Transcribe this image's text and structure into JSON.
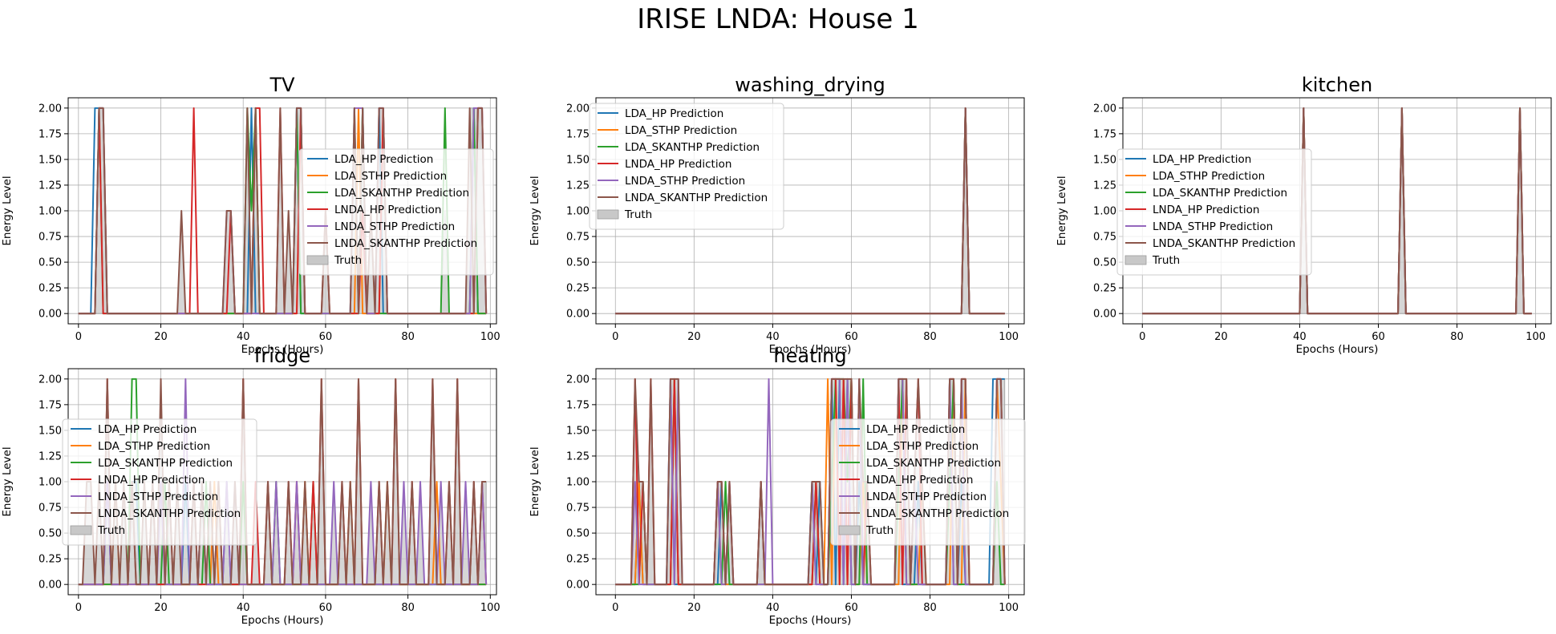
{
  "figure": {
    "suptitle": "IRISE LNDA: House 1"
  },
  "colors": {
    "LDA_HP": "#1f77b4",
    "LDA_STHP": "#ff7f0e",
    "LDA_SKANTHP": "#2ca02c",
    "LNDA_HP": "#d62728",
    "LNDA_STHP": "#9467bd",
    "LNDA_SKANTHP": "#8c564b",
    "truth": "#c8c8c8"
  },
  "legend_labels": {
    "LDA_HP": "LDA_HP Prediction",
    "LDA_STHP": "LDA_STHP Prediction",
    "LDA_SKANTHP": "LDA_SKANTHP Prediction",
    "LNDA_HP": "LNDA_HP Prediction",
    "LNDA_STHP": "LNDA_STHP Prediction",
    "LNDA_SKANTHP": "LNDA_SKANTHP Prediction",
    "truth": "Truth"
  },
  "chart_data": [
    {
      "type": "line",
      "title": "TV",
      "xlabel": "Epochs (Hours)",
      "ylabel": "Energy Level",
      "xlim": [
        -2.5,
        101.5
      ],
      "ylim": [
        -0.1,
        2.1
      ],
      "xticks": [
        0,
        20,
        40,
        60,
        80,
        100
      ],
      "yticks": [
        0,
        0.25,
        0.5,
        0.75,
        1,
        1.25,
        1.5,
        1.75,
        2
      ],
      "grid": true,
      "legend_position": "center-right",
      "x_count": 100,
      "truth": {
        "5": 2,
        "6": 2,
        "25": 1,
        "36": 1,
        "37": 1,
        "41": 2,
        "43": 2,
        "49": 2,
        "51": 1,
        "53": 2,
        "54": 2,
        "60": 1,
        "67": 2,
        "69": 2,
        "71": 1,
        "73": 2,
        "74": 2,
        "89": 1,
        "95": 2,
        "96": 2,
        "97": 2,
        "98": 2
      },
      "series": {
        "LDA_HP": {
          "4": 2,
          "5": 2,
          "6": 2,
          "42": 2,
          "53": 2,
          "67": 2,
          "69": 2,
          "73": 2,
          "96": 2
        },
        "LDA_STHP": {
          "5": 2,
          "6": 2,
          "43": 2,
          "54": 2,
          "68": 2,
          "74": 2
        },
        "LDA_SKANTHP": {
          "5": 2,
          "41": 2,
          "42": 1,
          "43": 2,
          "53": 2,
          "69": 2,
          "89": 2,
          "96": 2
        },
        "LNDA_HP": {
          "5": 2,
          "28": 2,
          "37": 1,
          "43": 2,
          "44": 2,
          "49": 2,
          "54": 2,
          "60": 1,
          "69": 1,
          "74": 2,
          "97": 2,
          "98": 2
        },
        "LNDA_STHP": {
          "5": 2,
          "6": 2,
          "36": 1,
          "37": 1,
          "53": 2,
          "54": 2,
          "67": 2,
          "68": 2,
          "69": 2,
          "73": 2,
          "74": 2,
          "96": 2,
          "97": 2,
          "98": 2
        },
        "LNDA_SKANTHP": {
          "5": 2,
          "6": 2,
          "25": 1,
          "36": 1,
          "37": 1,
          "41": 2,
          "43": 2,
          "49": 2,
          "51": 1,
          "53": 2,
          "54": 2,
          "60": 1,
          "67": 2,
          "69": 2,
          "71": 1,
          "73": 2,
          "74": 2,
          "95": 2,
          "97": 2,
          "98": 2
        }
      }
    },
    {
      "type": "line",
      "title": "washing_drying",
      "xlabel": "Epochs (Hours)",
      "ylabel": "Energy Level",
      "xlim": [
        -4.95,
        103.95
      ],
      "ylim": [
        -0.1,
        2.1
      ],
      "xticks": [
        0,
        20,
        40,
        60,
        80,
        100
      ],
      "yticks": [
        0,
        0.25,
        0.5,
        0.75,
        1,
        1.25,
        1.5,
        1.75,
        2
      ],
      "grid": true,
      "legend_position": "top-left",
      "x_count": 100,
      "truth": {
        "89": 2
      },
      "series": {
        "LDA_HP": {
          "89": 2
        },
        "LDA_STHP": {
          "89": 2
        },
        "LDA_SKANTHP": {
          "89": 2
        },
        "LNDA_HP": {
          "89": 2
        },
        "LNDA_STHP": {
          "89": 2
        },
        "LNDA_SKANTHP": {
          "89": 2
        }
      }
    },
    {
      "type": "line",
      "title": "kitchen",
      "xlabel": "Epochs (Hours)",
      "ylabel": "Energy Level",
      "xlim": [
        -4.95,
        103.95
      ],
      "ylim": [
        -0.1,
        2.1
      ],
      "xticks": [
        0,
        20,
        40,
        60,
        80,
        100
      ],
      "yticks": [
        0,
        0.25,
        0.5,
        0.75,
        1,
        1.25,
        1.5,
        1.75,
        2
      ],
      "grid": true,
      "legend_position": "center-left",
      "x_count": 100,
      "truth": {
        "41": 2,
        "66": 2,
        "96": 2
      },
      "series": {
        "LDA_HP": {
          "41": 2,
          "66": 2,
          "96": 2
        },
        "LDA_STHP": {
          "41": 2,
          "66": 2,
          "96": 2
        },
        "LDA_SKANTHP": {
          "41": 2,
          "66": 2,
          "96": 2
        },
        "LNDA_HP": {
          "41": 2,
          "66": 2,
          "96": 2
        },
        "LNDA_STHP": {
          "41": 2,
          "66": 2,
          "96": 2
        },
        "LNDA_SKANTHP": {
          "41": 2,
          "66": 2,
          "96": 2
        }
      }
    },
    {
      "type": "line",
      "title": "fridge",
      "xlabel": "Epochs (Hours)",
      "ylabel": "Energy Level",
      "xlim": [
        -2.5,
        101.5
      ],
      "ylim": [
        -0.1,
        2.1
      ],
      "xticks": [
        0,
        20,
        40,
        60,
        80,
        100
      ],
      "yticks": [
        0,
        0.25,
        0.5,
        0.75,
        1,
        1.25,
        1.5,
        1.75,
        2
      ],
      "grid": true,
      "legend_position": "center-left",
      "x_count": 100,
      "truth": {
        "2": 1,
        "3": 1,
        "5": 1,
        "7": 2,
        "9": 1,
        "11": 1,
        "13": 1,
        "14": 1,
        "16": 1,
        "18": 1,
        "20": 2,
        "22": 1,
        "24": 1,
        "26": 1,
        "28": 1,
        "30": 1,
        "32": 1,
        "34": 1,
        "36": 1,
        "38": 1,
        "40": 2,
        "43": 1,
        "46": 1,
        "48": 1,
        "51": 1,
        "53": 1,
        "55": 1,
        "57": 1,
        "59": 2,
        "62": 1,
        "64": 1,
        "66": 1,
        "68": 2,
        "71": 1,
        "73": 1,
        "75": 1,
        "77": 2,
        "79": 1,
        "81": 1,
        "83": 1,
        "86": 2,
        "88": 1,
        "90": 1,
        "92": 2,
        "94": 1,
        "96": 1,
        "98": 1,
        "99": 1
      },
      "series": {
        "LDA_HP": {
          "7": 1,
          "13": 1,
          "14": 1,
          "26": 1,
          "30": 1,
          "36": 1
        },
        "LDA_STHP": {
          "9": 1,
          "33": 1,
          "55": 1,
          "66": 1,
          "75": 1,
          "87": 1
        },
        "LDA_SKANTHP": {
          "13": 2,
          "14": 2,
          "21": 1,
          "31": 1,
          "40": 1,
          "48": 1,
          "57": 1
        },
        "LNDA_HP": {
          "7": 2,
          "13": 1,
          "18": 1,
          "22": 1,
          "28": 1,
          "34": 1,
          "40": 2,
          "43": 1,
          "46": 1,
          "51": 1,
          "53": 1,
          "57": 1,
          "59": 2,
          "64": 1,
          "68": 2,
          "73": 1,
          "77": 2,
          "81": 1,
          "86": 2,
          "90": 1,
          "92": 2,
          "96": 1,
          "98": 1
        },
        "LNDA_STHP": {
          "7": 1,
          "20": 1,
          "26": 2,
          "30": 1,
          "36": 1,
          "38": 1,
          "48": 1,
          "53": 1,
          "62": 1,
          "71": 1,
          "79": 1,
          "83": 1,
          "88": 1,
          "94": 1,
          "98": 1
        },
        "LNDA_SKANTHP": {
          "2": 1,
          "3": 1,
          "5": 1,
          "7": 2,
          "9": 1,
          "11": 1,
          "13": 1,
          "16": 1,
          "18": 1,
          "20": 2,
          "22": 1,
          "24": 1,
          "28": 1,
          "30": 1,
          "32": 1,
          "34": 1,
          "38": 1,
          "40": 2,
          "46": 1,
          "51": 1,
          "55": 1,
          "59": 2,
          "64": 1,
          "66": 1,
          "68": 2,
          "73": 1,
          "75": 1,
          "77": 2,
          "81": 1,
          "86": 2,
          "90": 1,
          "92": 2,
          "96": 1,
          "98": 1,
          "99": 1
        }
      }
    },
    {
      "type": "line",
      "title": "heating",
      "xlabel": "Epochs (Hours)",
      "ylabel": "Energy Level",
      "xlim": [
        -4.95,
        103.95
      ],
      "ylim": [
        -0.1,
        2.1
      ],
      "xticks": [
        0,
        20,
        40,
        60,
        80,
        100
      ],
      "yticks": [
        0,
        0.25,
        0.5,
        0.75,
        1,
        1.25,
        1.5,
        1.75,
        2
      ],
      "grid": true,
      "legend_position": "center-right",
      "x_count": 100,
      "truth": {
        "5": 2,
        "6": 1,
        "7": 1,
        "9": 2,
        "14": 2,
        "15": 2,
        "16": 2,
        "26": 1,
        "27": 1,
        "29": 1,
        "37": 1,
        "50": 1,
        "51": 1,
        "52": 1,
        "55": 2,
        "56": 2,
        "57": 2,
        "58": 2,
        "59": 2,
        "60": 2,
        "62": 2,
        "63": 1,
        "64": 1,
        "72": 2,
        "73": 2,
        "74": 2,
        "76": 1,
        "77": 2,
        "78": 1,
        "85": 2,
        "86": 2,
        "88": 2,
        "89": 2,
        "97": 2,
        "98": 2,
        "99": 2
      },
      "series": {
        "LDA_HP": {
          "6": 1,
          "14": 2,
          "27": 1,
          "37": 1,
          "50": 1,
          "52": 1,
          "55": 2,
          "57": 2,
          "59": 2,
          "62": 1,
          "72": 2,
          "77": 1,
          "85": 2,
          "88": 1,
          "96": 2,
          "97": 2,
          "98": 2,
          "99": 2
        },
        "LDA_STHP": {
          "6": 1,
          "15": 2,
          "26": 1,
          "51": 1,
          "54": 2,
          "56": 2,
          "58": 2,
          "60": 2,
          "63": 1,
          "73": 2,
          "78": 1,
          "86": 2,
          "89": 2,
          "97": 2,
          "98": 1
        },
        "LDA_SKANTHP": {
          "7": 1,
          "15": 2,
          "28": 1,
          "51": 1,
          "55": 1,
          "56": 2,
          "57": 2,
          "58": 2,
          "59": 1,
          "60": 2,
          "63": 2,
          "72": 1,
          "73": 2,
          "85": 1,
          "86": 2,
          "97": 1
        },
        "LNDA_HP": {
          "5": 2,
          "7": 1,
          "9": 2,
          "15": 2,
          "26": 1,
          "27": 1,
          "29": 1,
          "37": 1,
          "51": 1,
          "55": 2,
          "56": 2,
          "58": 2,
          "60": 2,
          "62": 2,
          "64": 1,
          "72": 2,
          "74": 2,
          "76": 1,
          "77": 2,
          "85": 2,
          "86": 2,
          "88": 2,
          "89": 2,
          "97": 2,
          "98": 2
        },
        "LNDA_STHP": {
          "5": 1,
          "14": 2,
          "16": 2,
          "26": 1,
          "29": 1,
          "39": 2,
          "50": 1,
          "55": 2,
          "56": 2,
          "57": 2,
          "59": 2,
          "62": 2,
          "72": 2,
          "73": 2,
          "76": 1,
          "85": 2,
          "88": 2,
          "97": 2,
          "98": 2
        },
        "LNDA_SKANTHP": {
          "5": 2,
          "6": 1,
          "7": 1,
          "9": 2,
          "14": 2,
          "15": 2,
          "16": 2,
          "26": 1,
          "27": 1,
          "29": 1,
          "37": 1,
          "50": 1,
          "51": 1,
          "52": 1,
          "55": 2,
          "56": 2,
          "57": 2,
          "58": 2,
          "59": 2,
          "60": 2,
          "62": 2,
          "63": 1,
          "64": 1,
          "72": 2,
          "73": 2,
          "74": 2,
          "76": 1,
          "77": 2,
          "78": 1,
          "85": 2,
          "86": 2,
          "88": 2,
          "89": 2,
          "97": 2,
          "98": 2
        }
      }
    }
  ]
}
